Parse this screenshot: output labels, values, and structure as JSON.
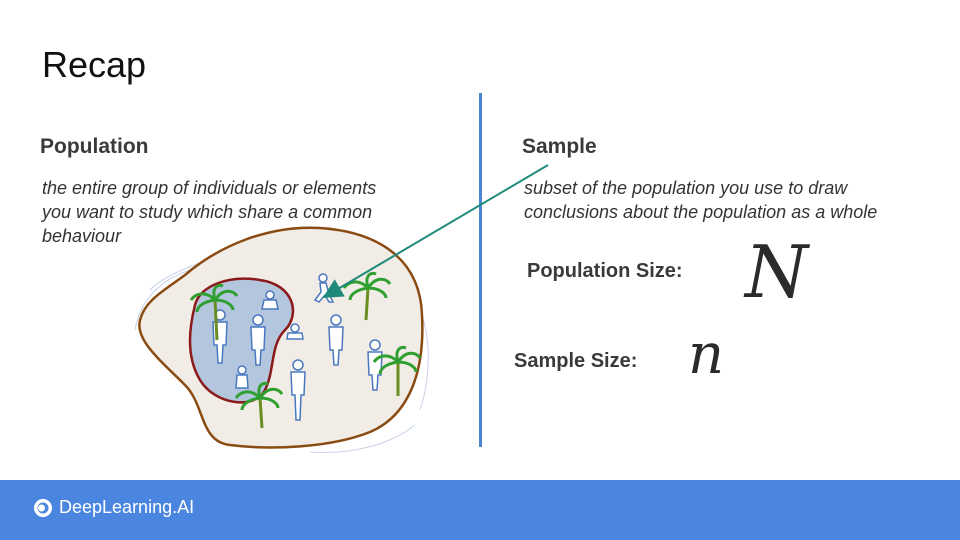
{
  "title": "Recap",
  "population": {
    "heading": "Population",
    "definition_line1": "the entire group of individuals or elements",
    "definition_line2": "you want to study which share a common",
    "definition_line3": "behaviour"
  },
  "sample": {
    "heading": "Sample",
    "definition_line1": "subset of the population you use to draw",
    "definition_line2": "conclusions about the population as a whole"
  },
  "population_size": {
    "label": "Population Size:",
    "symbol": "N"
  },
  "sample_size": {
    "label": "Sample Size:",
    "symbol": "n"
  },
  "footer": {
    "brand": "DeepLearning.AI"
  },
  "colors": {
    "accent": "#4a86e0",
    "divider": "#4a86d0",
    "arrow": "#1f8a7a",
    "island_outline": "#8a4b12",
    "sample_outline": "#8b1a1a"
  }
}
